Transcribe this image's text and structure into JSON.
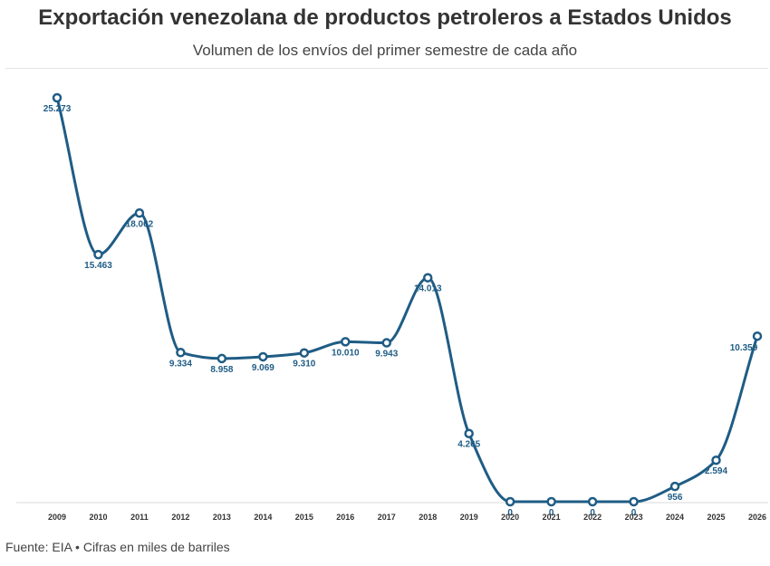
{
  "header": {
    "title": "Exportación venezolana de productos petroleros a Estados Unidos",
    "subtitle": "Volumen de los envíos del primer semestre de cada año"
  },
  "footer": {
    "source": "Fuente: EIA • Cifras en miles de barriles"
  },
  "colors": {
    "line": "#1f5c85",
    "marker_fill": "#ffffff",
    "axis": "#d9d9d9"
  },
  "chart_data": {
    "type": "line",
    "title": "Exportación venezolana de productos petroleros a Estados Unidos",
    "subtitle": "Volumen de los envíos del primer semestre de cada año",
    "xlabel": "",
    "ylabel": "",
    "ylim": [
      0,
      25273
    ],
    "grid": false,
    "legend": "none",
    "x": [
      "2009",
      "2010",
      "2011",
      "2012",
      "2013",
      "2014",
      "2015",
      "2016",
      "2017",
      "2018",
      "2019",
      "2020",
      "2021",
      "2022",
      "2023",
      "2024",
      "2025",
      "2026"
    ],
    "values": [
      25273,
      15463,
      18062,
      9334,
      8958,
      9069,
      9310,
      10010,
      9943,
      14013,
      4265,
      0,
      0,
      0,
      0,
      956,
      2594,
      10359
    ],
    "labels": [
      "25.273",
      "15.463",
      "18.062",
      "9.334",
      "8.958",
      "9.069",
      "9.310",
      "10.010",
      "9.943",
      "14.013",
      "4.265",
      "0",
      "0",
      "0",
      "0",
      "956",
      "2.594",
      "10.359"
    ]
  }
}
